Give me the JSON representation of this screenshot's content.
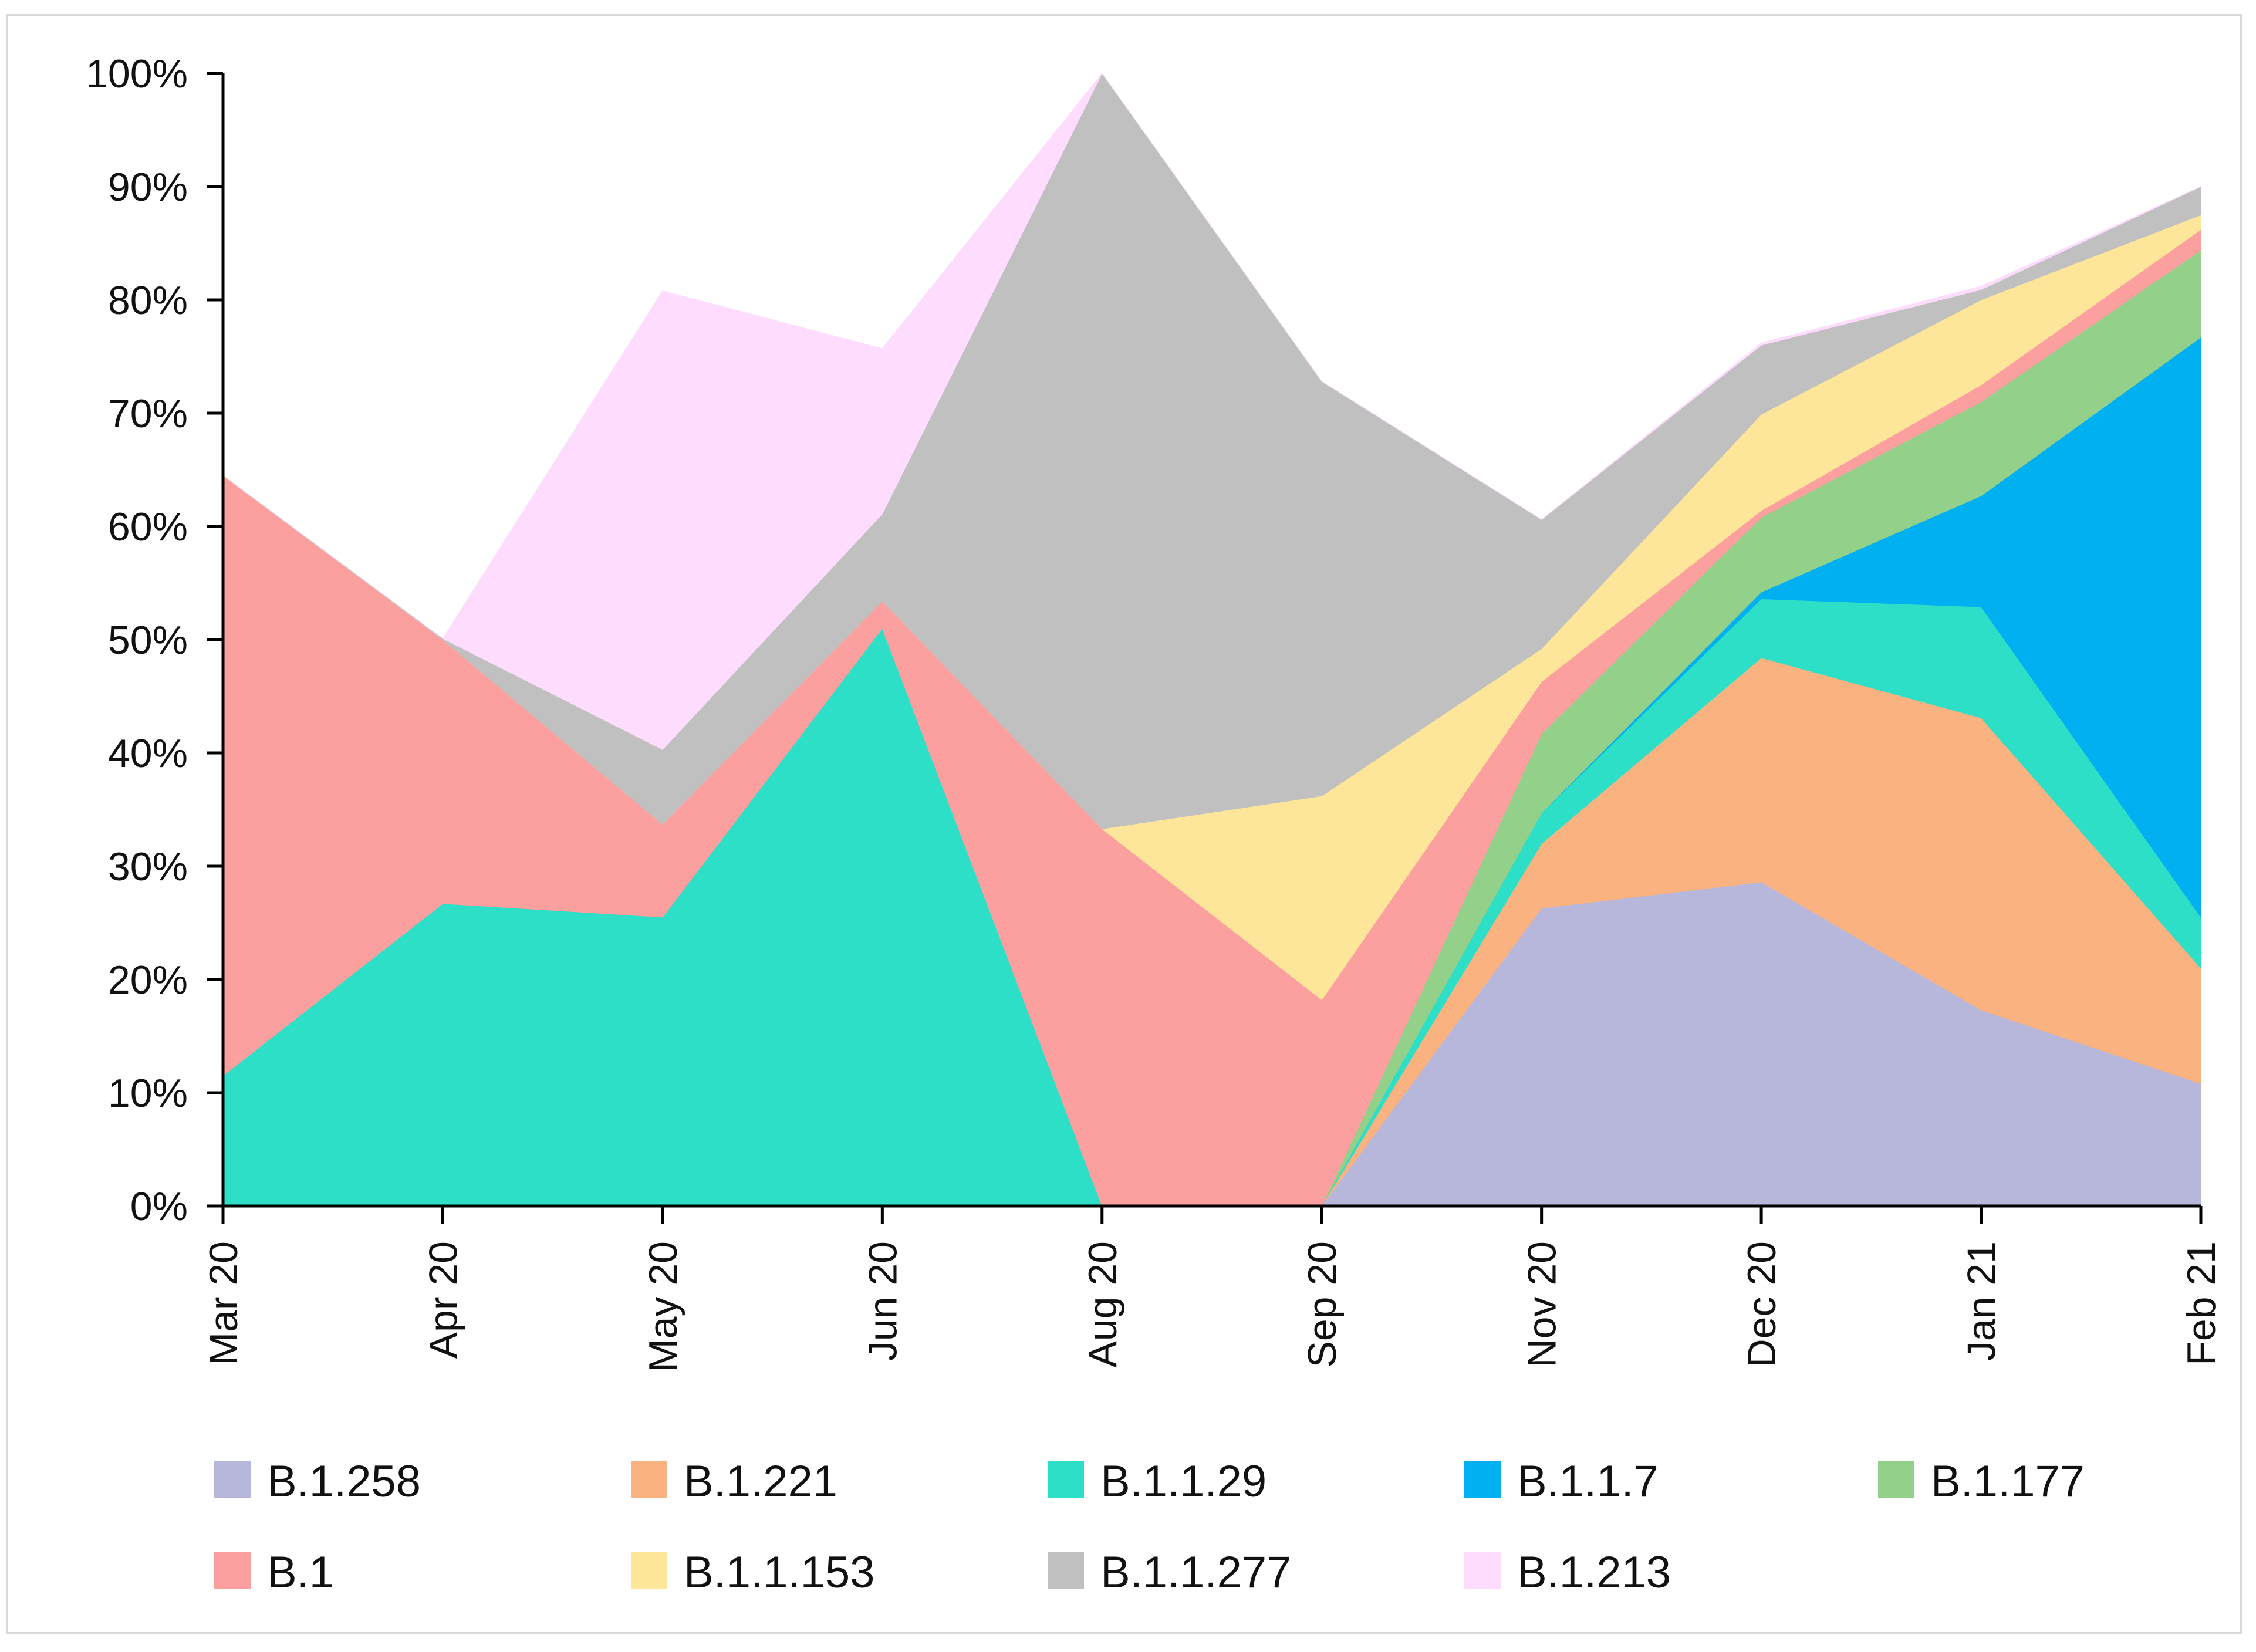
{
  "chart_data": {
    "type": "area",
    "stacked": true,
    "title": "",
    "xlabel": "",
    "ylabel": "",
    "ylim": [
      0,
      100
    ],
    "yticks": [
      "0%",
      "10%",
      "20%",
      "30%",
      "40%",
      "50%",
      "60%",
      "70%",
      "80%",
      "90%",
      "100%"
    ],
    "categories": [
      "Mar 20",
      "Apr 20",
      "May 20",
      "Jun 20",
      "Aug 20",
      "Sep 20",
      "Nov 20",
      "Dec 20",
      "Jan 21",
      "Feb 21"
    ],
    "series": [
      {
        "name": "B.1.258",
        "color": "#b7b7db",
        "values": [
          0,
          0,
          0,
          0,
          0,
          0,
          26.3,
          28.6,
          17.3,
          10.8
        ]
      },
      {
        "name": "B.1.221",
        "color": "#fbb281",
        "values": [
          0,
          0,
          0,
          0,
          0,
          0,
          5.7,
          19.8,
          25.8,
          10.2
        ]
      },
      {
        "name": "B.1.1.29",
        "color": "#2edfc8",
        "values": [
          11.5,
          26.7,
          25.5,
          51.0,
          0,
          0,
          2.7,
          5.2,
          9.8,
          4.5
        ]
      },
      {
        "name": "B.1.1.7",
        "color": "#00b0f0",
        "values": [
          0,
          0,
          0,
          0,
          0,
          0,
          0,
          0.6,
          9.8,
          51.2
        ]
      },
      {
        "name": "B.1.177",
        "color": "#93d18b",
        "values": [
          0,
          0,
          0,
          0,
          0,
          0,
          7.0,
          6.6,
          8.3,
          7.7
        ]
      },
      {
        "name": "B.1",
        "color": "#fc9f9f",
        "values": [
          53.0,
          23.3,
          8.2,
          2.4,
          33.3,
          18.2,
          4.6,
          0.6,
          1.5,
          1.8
        ]
      },
      {
        "name": "B.1.1.153",
        "color": "#fde699",
        "values": [
          0,
          0,
          0,
          0,
          0,
          18.0,
          2.9,
          8.5,
          7.5,
          1.3
        ]
      },
      {
        "name": "B.1.1.277",
        "color": "#c0c0c0",
        "values": [
          0,
          0.1,
          6.6,
          7.7,
          66.7,
          36.6,
          11.4,
          6.1,
          0.9,
          2.5
        ]
      },
      {
        "name": "B.1.213",
        "color": "#fddcfd",
        "values": [
          0,
          0,
          40.5,
          14.6,
          0,
          0,
          0,
          0.2,
          0.3,
          0
        ]
      }
    ],
    "legend": {
      "position": "bottom",
      "rows": [
        [
          "B.1.258",
          "B.1.221",
          "B.1.1.29",
          "B.1.1.7",
          "B.1.177"
        ],
        [
          "B.1",
          "B.1.1.153",
          "B.1.1.277",
          "B.1.213"
        ]
      ]
    },
    "grid": false
  }
}
